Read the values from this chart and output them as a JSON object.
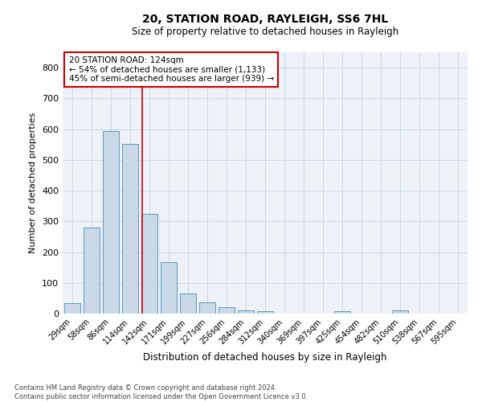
{
  "title1": "20, STATION ROAD, RAYLEIGH, SS6 7HL",
  "title2": "Size of property relative to detached houses in Rayleigh",
  "xlabel": "Distribution of detached houses by size in Rayleigh",
  "ylabel": "Number of detached properties",
  "categories": [
    "29sqm",
    "58sqm",
    "86sqm",
    "114sqm",
    "142sqm",
    "171sqm",
    "199sqm",
    "227sqm",
    "256sqm",
    "284sqm",
    "312sqm",
    "340sqm",
    "369sqm",
    "397sqm",
    "425sqm",
    "454sqm",
    "482sqm",
    "510sqm",
    "538sqm",
    "567sqm",
    "595sqm"
  ],
  "values": [
    35,
    280,
    595,
    552,
    325,
    167,
    65,
    37,
    20,
    10,
    8,
    0,
    0,
    0,
    8,
    0,
    0,
    10,
    0,
    0,
    0
  ],
  "bar_color": "#c9d9e8",
  "bar_edge_color": "#5a9abf",
  "annotation_text_line1": "20 STATION ROAD: 124sqm",
  "annotation_text_line2": "← 54% of detached houses are smaller (1,133)",
  "annotation_text_line3": "45% of semi-detached houses are larger (939) →",
  "annotation_box_color": "#ffffff",
  "annotation_box_edge_color": "#cc0000",
  "red_line_color": "#cc0000",
  "grid_color": "#c8d8e8",
  "background_color": "#eef2f8",
  "footer": "Contains HM Land Registry data © Crown copyright and database right 2024.\nContains public sector information licensed under the Open Government Licence v3.0.",
  "ylim": [
    0,
    850
  ],
  "yticks": [
    0,
    100,
    200,
    300,
    400,
    500,
    600,
    700,
    800
  ],
  "red_line_x": 3.62
}
